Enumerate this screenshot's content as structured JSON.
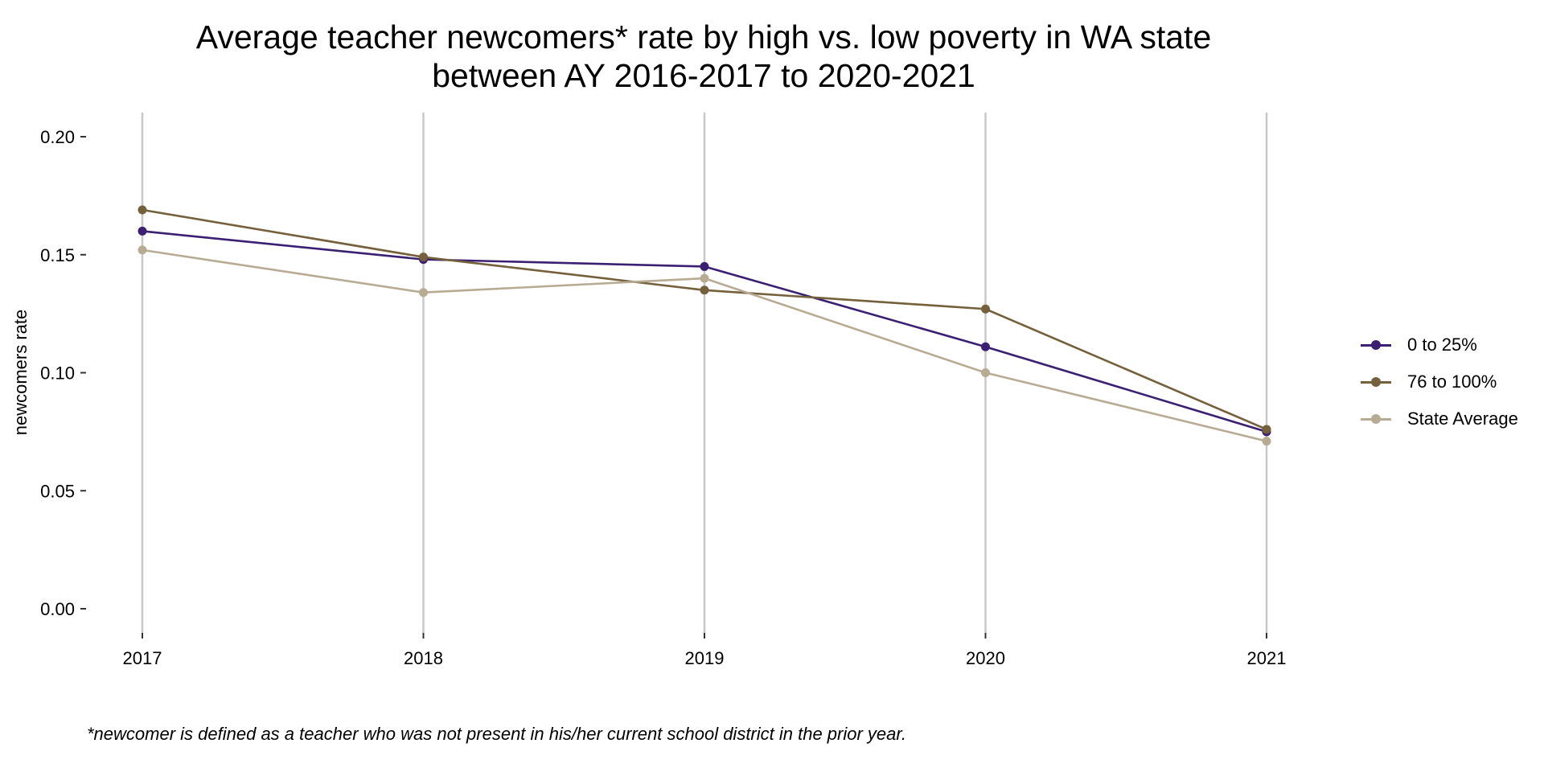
{
  "chart_data": {
    "type": "line",
    "title_lines": [
      "Average teacher newcomers* rate by high vs. low poverty in WA state",
      "between AY 2016-2017 to 2020-2021"
    ],
    "xlabel": "",
    "ylabel": "newcomers rate",
    "x": [
      2017,
      2018,
      2019,
      2020,
      2021
    ],
    "x_tick_labels": [
      "2017",
      "2018",
      "2019",
      "2020",
      "2021"
    ],
    "y_ticks": [
      0.0,
      0.05,
      0.1,
      0.15,
      0.2
    ],
    "y_tick_labels": [
      "0.00",
      "0.05",
      "0.10",
      "0.15",
      "0.20"
    ],
    "ylim": [
      0.0,
      0.2
    ],
    "grid": "vertical major gridlines",
    "legend_position": "right",
    "series": [
      {
        "name": "0 to 25%",
        "color": "#3b1f73",
        "values": [
          0.16,
          0.148,
          0.145,
          0.111,
          0.075
        ]
      },
      {
        "name": "76 to 100%",
        "color": "#74603a",
        "values": [
          0.169,
          0.149,
          0.135,
          0.127,
          0.076
        ]
      },
      {
        "name": "State Average",
        "color": "#b8ab93",
        "values": [
          0.152,
          0.134,
          0.14,
          0.1,
          0.071
        ]
      }
    ],
    "footnote": "*newcomer is defined as a teacher who was not present in his/her current school district in the prior year."
  }
}
